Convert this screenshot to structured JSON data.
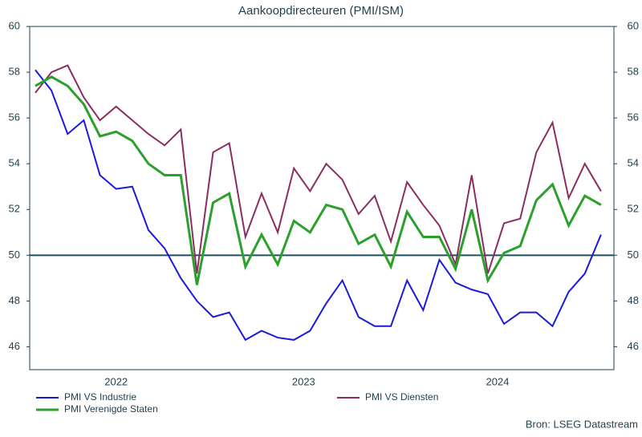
{
  "chart_data": {
    "type": "line",
    "title": "Aankoopdirecteuren (PMI/ISM)",
    "categories": [
      null,
      null,
      null,
      null,
      null,
      null,
      null,
      null,
      null,
      null,
      null,
      null,
      null,
      null,
      null,
      null,
      null,
      null,
      null,
      null,
      null,
      null,
      null,
      null,
      null,
      null,
      null,
      null,
      null,
      null,
      null,
      null,
      null,
      null,
      null,
      null
    ],
    "xticks": [
      {
        "value": 5,
        "label": "2022"
      },
      {
        "value": 16.6,
        "label": "2023"
      },
      {
        "value": 28.6,
        "label": "2024"
      }
    ],
    "ylim": [
      45,
      60
    ],
    "yticks": [
      46,
      48,
      50,
      52,
      54,
      56,
      58,
      60
    ],
    "y2lim": [
      45,
      60
    ],
    "y2ticks": [
      46,
      48,
      50,
      52,
      54,
      56,
      58,
      60
    ],
    "reference_line": 50,
    "reference_color": "#1f4e5a",
    "series": [
      {
        "name": "PMI VS Industrie",
        "color": "#1a1adc",
        "values": [
          58.1,
          57.2,
          55.3,
          55.9,
          53.5,
          52.9,
          53.0,
          51.1,
          50.3,
          49.0,
          48.0,
          47.3,
          47.5,
          46.3,
          46.7,
          46.4,
          46.3,
          46.7,
          47.9,
          48.9,
          47.3,
          46.9,
          46.9,
          48.9,
          47.6,
          49.8,
          48.8,
          48.5,
          48.3,
          47.0,
          47.5,
          47.5,
          46.9,
          48.4,
          49.2,
          50.9
        ]
      },
      {
        "name": "PMI VS Diensten",
        "color": "#8c2d62",
        "values": [
          57.1,
          58.0,
          58.3,
          56.9,
          55.9,
          56.5,
          55.9,
          55.3,
          54.8,
          55.5,
          49.2,
          54.5,
          54.9,
          50.8,
          52.7,
          51.0,
          53.8,
          52.8,
          54.0,
          53.3,
          51.8,
          52.6,
          50.6,
          53.2,
          52.2,
          51.3,
          49.6,
          53.5,
          49.2,
          51.4,
          51.6,
          54.5,
          55.8,
          52.5,
          54.0,
          52.8
        ]
      },
      {
        "name": "PMI Verenigde Staten",
        "color": "#2ca02c",
        "values": [
          57.4,
          57.8,
          57.4,
          56.6,
          55.2,
          55.4,
          55.0,
          54.0,
          53.5,
          53.5,
          48.7,
          52.3,
          52.7,
          49.5,
          50.9,
          49.6,
          51.5,
          51.0,
          52.2,
          52.0,
          50.5,
          50.9,
          49.5,
          51.9,
          50.8,
          50.8,
          49.4,
          52.0,
          48.9,
          50.1,
          50.4,
          52.4,
          53.1,
          51.3,
          52.6,
          52.2
        ]
      }
    ],
    "source": "Bron: LSEG Datastream"
  }
}
